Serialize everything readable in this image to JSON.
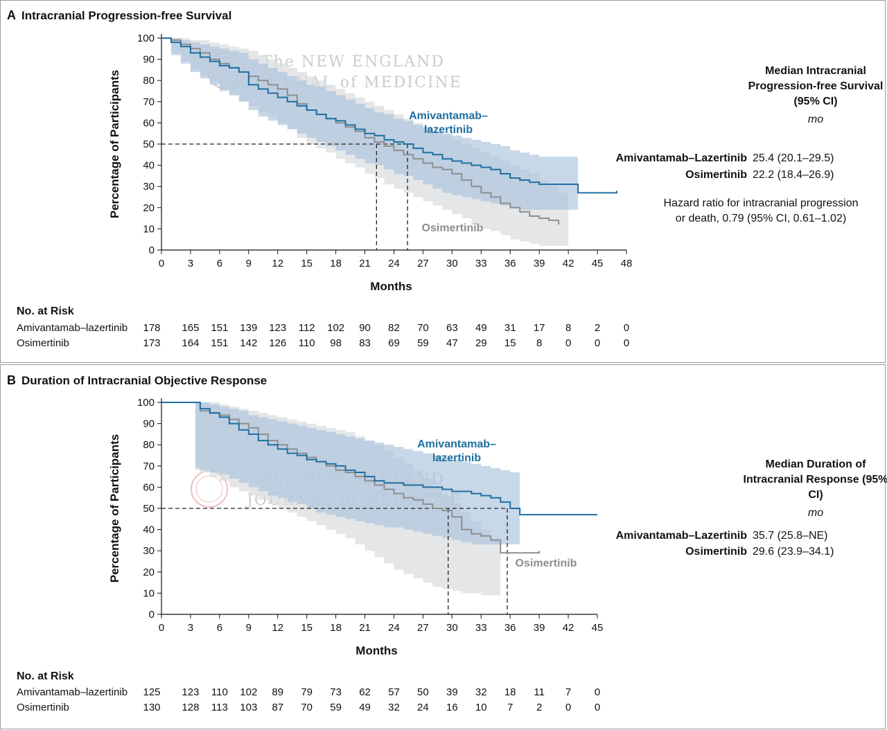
{
  "panel_a": {
    "letter": "A",
    "title": "Intracranial Progression-free Survival",
    "side_heading": "Median Intracranial Progression-free Survival (95% CI)",
    "side_unit": "mo",
    "medians": [
      {
        "name": "Amivantamab–Lazertinib",
        "value": "25.4 (20.1–29.5)"
      },
      {
        "name": "Osimertinib",
        "value": "22.2 (18.4–26.9)"
      }
    ],
    "hazard_line1": "Hazard ratio for intracranial progression",
    "hazard_line2": "or death, 0.79 (95% CI, 0.61–1.02)",
    "risk_title": "No. at Risk",
    "risk_rows": [
      {
        "name": "Amivantamab–lazertinib",
        "values": [
          "178",
          "165",
          "151",
          "139",
          "123",
          "112",
          "102",
          "90",
          "82",
          "70",
          "63",
          "49",
          "31",
          "17",
          "8",
          "2",
          "0"
        ]
      },
      {
        "name": "Osimertinib",
        "values": [
          "173",
          "164",
          "151",
          "142",
          "126",
          "110",
          "98",
          "83",
          "69",
          "59",
          "47",
          "29",
          "15",
          "8",
          "0",
          "0",
          "0"
        ]
      }
    ]
  },
  "panel_b": {
    "letter": "B",
    "title": "Duration of Intracranial Objective Response",
    "side_heading": "Median Duration of Intracranial Response (95% CI)",
    "side_unit": "mo",
    "medians": [
      {
        "name": "Amivantamab–Lazertinib",
        "value": "35.7 (25.8–NE)"
      },
      {
        "name": "Osimertinib",
        "value": "29.6 (23.9–34.1)"
      }
    ],
    "risk_title": "No. at Risk",
    "risk_rows": [
      {
        "name": "Amivantamab–lazertinib",
        "values": [
          "125",
          "123",
          "110",
          "102",
          "89",
          "79",
          "73",
          "62",
          "57",
          "50",
          "39",
          "32",
          "18",
          "11",
          "7",
          "0"
        ]
      },
      {
        "name": "Osimertinib",
        "values": [
          "130",
          "128",
          "113",
          "103",
          "87",
          "70",
          "59",
          "49",
          "32",
          "24",
          "16",
          "10",
          "7",
          "2",
          "0",
          "0"
        ]
      }
    ]
  },
  "watermark": {
    "line1": "The NEW ENGLAND",
    "line2": "JOURNAL of MEDICINE"
  },
  "colors": {
    "ami": "#1f6f9f",
    "osi": "#8e8e8e",
    "ami_band": "#a9c3dd",
    "osi_band": "#d9dbdd"
  },
  "chart_data": [
    {
      "type": "line",
      "title": "Intracranial Progression-free Survival",
      "xlabel": "Months",
      "ylabel": "Percentage of Participants",
      "xlim": [
        0,
        48
      ],
      "ylim": [
        0,
        100
      ],
      "xticks": [
        0,
        3,
        6,
        9,
        12,
        15,
        18,
        21,
        24,
        27,
        30,
        33,
        36,
        39,
        42,
        45,
        48
      ],
      "yticks": [
        0,
        10,
        20,
        30,
        40,
        50,
        60,
        70,
        80,
        90,
        100
      ],
      "reference_line": {
        "y": 50,
        "medians_x": [
          22.2,
          25.4
        ]
      },
      "series": [
        {
          "name": "Amivantamab–lazertinib",
          "label_lines": [
            "Amivantamab–",
            "lazertinib"
          ],
          "x": [
            0,
            1,
            2,
            3,
            4,
            5,
            6,
            7,
            8,
            9,
            10,
            11,
            12,
            13,
            14,
            15,
            16,
            17,
            18,
            19,
            20,
            21,
            22,
            23,
            24,
            25,
            26,
            27,
            28,
            29,
            30,
            31,
            32,
            33,
            34,
            35,
            36,
            37,
            38,
            39,
            40,
            41,
            42,
            43,
            44,
            45,
            46,
            47
          ],
          "y": [
            100,
            98,
            96,
            93,
            91,
            89,
            87,
            86,
            84,
            78,
            76,
            74,
            72,
            70,
            68,
            66,
            64,
            62,
            61,
            59,
            57,
            55,
            54,
            52,
            51,
            50,
            48,
            46,
            45,
            43,
            42,
            41,
            40,
            39,
            38,
            36,
            34,
            33,
            32,
            31,
            31,
            31,
            31,
            27,
            27,
            27,
            27,
            28
          ],
          "ci_lower": [
            100,
            92,
            88,
            84,
            81,
            78,
            75,
            73,
            70,
            66,
            63,
            61,
            59,
            57,
            55,
            53,
            51,
            49,
            47,
            45,
            43,
            41,
            40,
            38,
            36,
            35,
            33,
            31,
            29,
            27,
            26,
            25,
            24,
            23,
            22,
            21,
            20,
            19,
            19,
            19,
            19,
            19,
            19
          ],
          "ci_upper": [
            100,
            100,
            99,
            98,
            97,
            96,
            95,
            94,
            93,
            90,
            88,
            86,
            84,
            82,
            80,
            78,
            77,
            75,
            73,
            71,
            69,
            67,
            65,
            64,
            62,
            61,
            59,
            58,
            56,
            55,
            54,
            53,
            52,
            51,
            50,
            49,
            47,
            46,
            45,
            44,
            44,
            44,
            44
          ]
        },
        {
          "name": "Osimertinib",
          "label_lines": [
            "Osimertinib"
          ],
          "x": [
            0,
            1,
            2,
            3,
            4,
            5,
            6,
            7,
            8,
            9,
            10,
            11,
            12,
            13,
            14,
            15,
            16,
            17,
            18,
            19,
            20,
            21,
            22,
            23,
            24,
            25,
            26,
            27,
            28,
            29,
            30,
            31,
            32,
            33,
            34,
            35,
            36,
            37,
            38,
            39,
            40,
            41
          ],
          "y": [
            100,
            99,
            97,
            95,
            93,
            90,
            88,
            86,
            84,
            82,
            80,
            78,
            76,
            73,
            69,
            66,
            64,
            62,
            60,
            58,
            56,
            53,
            51,
            49,
            47,
            45,
            43,
            41,
            39,
            38,
            36,
            33,
            30,
            27,
            25,
            22,
            20,
            18,
            16,
            15,
            14,
            12
          ],
          "ci_lower": [
            100,
            93,
            89,
            85,
            82,
            79,
            76,
            73,
            70,
            68,
            65,
            63,
            60,
            57,
            53,
            50,
            48,
            46,
            43,
            41,
            39,
            36,
            34,
            31,
            29,
            27,
            25,
            23,
            21,
            19,
            17,
            15,
            12,
            10,
            9,
            7,
            5,
            4,
            3,
            2,
            2,
            2
          ],
          "ci_upper": [
            100,
            100,
            100,
            99,
            99,
            98,
            97,
            96,
            95,
            94,
            92,
            90,
            88,
            86,
            84,
            82,
            80,
            78,
            76,
            74,
            72,
            70,
            68,
            66,
            64,
            62,
            60,
            58,
            56,
            54,
            52,
            50,
            48,
            46,
            44,
            42,
            40,
            38,
            36,
            33,
            30,
            27
          ]
        }
      ]
    },
    {
      "type": "line",
      "title": "Duration of Intracranial Objective Response",
      "xlabel": "Months",
      "ylabel": "Percentage of Participants",
      "xlim": [
        0,
        45
      ],
      "ylim": [
        0,
        100
      ],
      "xticks": [
        0,
        3,
        6,
        9,
        12,
        15,
        18,
        21,
        24,
        27,
        30,
        33,
        36,
        39,
        42,
        45
      ],
      "yticks": [
        0,
        10,
        20,
        30,
        40,
        50,
        60,
        70,
        80,
        90,
        100
      ],
      "reference_line": {
        "y": 50,
        "medians_x": [
          29.6,
          35.7
        ]
      },
      "series": [
        {
          "name": "Amivantamab–lazertinib",
          "label_lines": [
            "Amivantamab–",
            "lazertinib"
          ],
          "x": [
            0,
            3.5,
            4,
            5,
            6,
            7,
            8,
            9,
            10,
            11,
            12,
            13,
            14,
            15,
            16,
            17,
            18,
            19,
            20,
            21,
            22,
            23,
            24,
            25,
            26,
            27,
            28,
            29,
            30,
            31,
            32,
            33,
            34,
            35,
            36,
            37,
            38,
            39,
            40,
            41,
            42,
            43,
            44,
            45
          ],
          "y": [
            100,
            100,
            97,
            95,
            93,
            90,
            87,
            85,
            82,
            80,
            78,
            76,
            75,
            73,
            72,
            71,
            70,
            68,
            67,
            65,
            63,
            62,
            62,
            61,
            61,
            60,
            60,
            59,
            58,
            58,
            57,
            56,
            55,
            53,
            50,
            47,
            47,
            47,
            47,
            47,
            47,
            47,
            47,
            47
          ],
          "ci_lower": [
            100,
            69,
            68,
            67,
            66,
            64,
            62,
            60,
            58,
            56,
            55,
            53,
            52,
            50,
            48,
            47,
            46,
            45,
            44,
            43,
            42,
            41,
            41,
            40,
            39,
            38,
            37,
            36,
            35,
            34,
            33,
            33,
            33,
            33,
            33
          ],
          "ci_upper": [
            100,
            100,
            100,
            99,
            98,
            97,
            96,
            94,
            93,
            92,
            91,
            90,
            89,
            88,
            87,
            86,
            85,
            84,
            83,
            82,
            81,
            80,
            79,
            78,
            77,
            76,
            75,
            74,
            73,
            72,
            71,
            70,
            69,
            68,
            67
          ]
        },
        {
          "name": "Osimertinib",
          "label_lines": [
            "Osimertinib"
          ],
          "x": [
            0,
            3.5,
            4,
            5,
            6,
            7,
            8,
            9,
            10,
            11,
            12,
            13,
            14,
            15,
            16,
            17,
            18,
            19,
            20,
            21,
            22,
            23,
            24,
            25,
            26,
            27,
            28,
            29,
            30,
            31,
            32,
            33,
            34,
            35,
            36,
            37,
            38,
            39
          ],
          "y": [
            100,
            100,
            96,
            95,
            94,
            92,
            90,
            88,
            85,
            82,
            80,
            78,
            76,
            74,
            72,
            70,
            68,
            67,
            65,
            63,
            61,
            59,
            57,
            55,
            54,
            52,
            50,
            49,
            46,
            40,
            38,
            37,
            35,
            29,
            29,
            29,
            29,
            30
          ],
          "ci_lower": [
            100,
            68,
            67,
            65,
            63,
            60,
            58,
            56,
            54,
            52,
            50,
            48,
            46,
            44,
            42,
            40,
            38,
            36,
            33,
            30,
            27,
            24,
            21,
            19,
            17,
            15,
            13,
            12,
            11,
            10,
            10,
            9,
            9
          ],
          "ci_upper": [
            100,
            100,
            100,
            100,
            99,
            98,
            97,
            96,
            95,
            94,
            93,
            92,
            91,
            90,
            89,
            88,
            87,
            86,
            84,
            82,
            80,
            77,
            74,
            71,
            68,
            64,
            60,
            56,
            52,
            48,
            44,
            40,
            36
          ]
        }
      ]
    }
  ]
}
